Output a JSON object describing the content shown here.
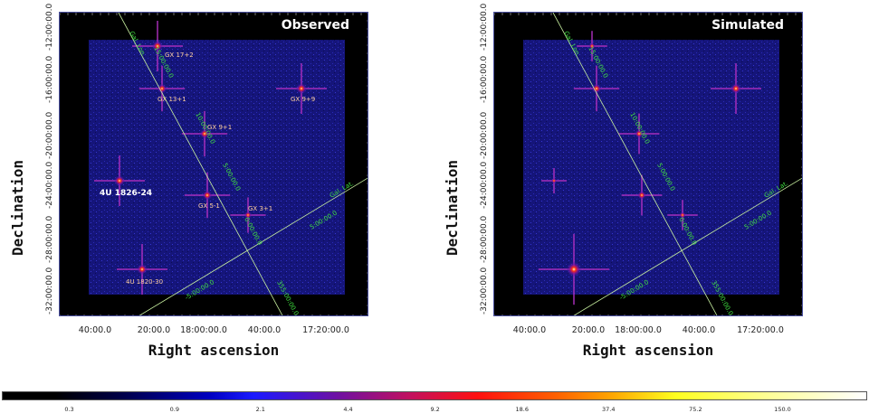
{
  "chart_data": [
    {
      "type": "heatmap",
      "title": "Observed",
      "xlabel": "Right ascension",
      "ylabel": "Declination",
      "xticks": [
        "40:00.0",
        "20:00.0",
        "18:00:00.0",
        "40:00.0",
        "17:20:00.0"
      ],
      "yticks": [
        "-12:00:00.0",
        "-16:00:00.0",
        "-20:00:00.0",
        "-24:00:00.0",
        "-28:00:00.0",
        "-32:00:00.0"
      ],
      "grid_overlay": {
        "lon_label": "Gal. Lon.",
        "lat_label": "Gal. Lat.",
        "lon_ticks": [
          "15:00:00.0",
          "10:00:00.0",
          "5:00:00.0",
          "0:00:00.0",
          "355:00:00.0"
        ],
        "lat_ticks": [
          "-5:00:00.0",
          "5:00:00.0"
        ]
      },
      "sources": [
        "GX 17+2",
        "GX 13+1",
        "GX 9+9",
        "GX 9+1",
        "4U 1826-24",
        "GX 5-1",
        "GX 3+1",
        "4U 1820-30"
      ]
    },
    {
      "type": "heatmap",
      "title": "Simulated",
      "xlabel": "Right ascension",
      "ylabel": "Declination",
      "xticks": [
        "40:00.0",
        "20:00.0",
        "18:00:00.0",
        "40:00.0",
        "17:20:00.0"
      ],
      "yticks": [
        "-12:00:00.0",
        "-16:00:00.0",
        "-20:00:00.0",
        "-24:00:00.0",
        "-28:00:00.0",
        "-32:00:00.0"
      ],
      "grid_overlay": {
        "lon_label": "Gal. Lon.",
        "lat_label": "Gal. Lat.",
        "lon_ticks": [
          "15:00:00.0",
          "10:00:00.0",
          "5:00:00.0",
          "0:00:00.0",
          "355:00:00.0"
        ],
        "lat_ticks": [
          "-5:00:00.0",
          "5:00:00.0"
        ]
      },
      "sources": []
    }
  ],
  "colorbar": {
    "ticks": [
      "0.3",
      "0.9",
      "2.1",
      "4.4",
      "9.2",
      "18.6",
      "37.4",
      "75.2",
      "150.0"
    ],
    "colormap": "heat (black-blue-red-yellow-white)"
  },
  "colors": {
    "background": "#000000",
    "field": "#1a1a8c",
    "grid_line": "#c8f0a0",
    "grid_label": "#40e040",
    "source_label": "#ffd0a0"
  }
}
